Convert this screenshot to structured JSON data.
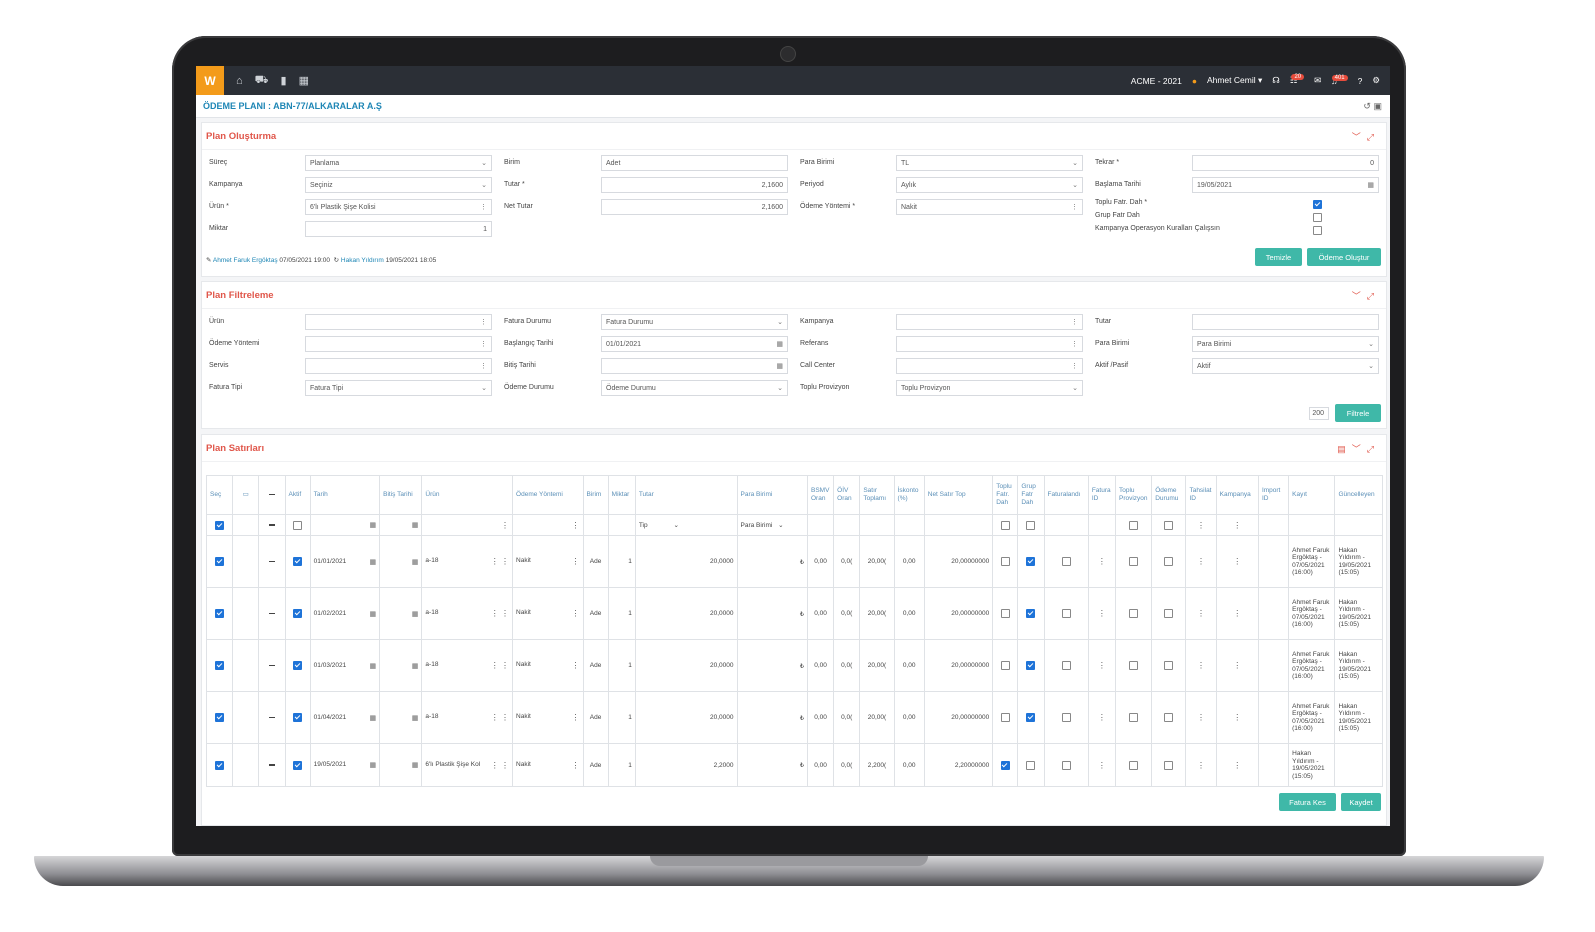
{
  "app": {
    "logo": "W",
    "company": "ACME - 2021",
    "user": "Ahmet Cemil",
    "badge_tasks": "20",
    "badge_notifications": "401"
  },
  "page_title": "ÖDEME PLANI : ABN-77/ALKARALAR A.Ş",
  "plan_creation": {
    "title": "Plan Oluşturma",
    "surec_label": "Süreç",
    "surec_value": "Planlama",
    "kampanya_label": "Kampanya",
    "kampanya_value": "Seçiniz",
    "urun_label": "Ürün *",
    "urun_value": "6'lı Plastik Şişe Kolisi",
    "miktar_label": "Miktar",
    "miktar_value": "1",
    "birim_label": "Birim",
    "birim_value": "Adet",
    "tutar_label": "Tutar *",
    "tutar_value": "2,1600",
    "net_tutar_label": "Net Tutar",
    "net_tutar_value": "2,1600",
    "para_birimi_label": "Para Birimi",
    "para_birimi_value": "TL",
    "periyod_label": "Periyod",
    "periyod_value": "Aylık",
    "odeme_yontemi_label": "Ödeme Yöntemi *",
    "odeme_yontemi_value": "Nakit",
    "tekrar_label": "Tekrar *",
    "tekrar_value": "0",
    "baslama_tarihi_label": "Başlama Tarihi",
    "baslama_tarihi_value": "19/05/2021",
    "toplu_fatr_label": "Toplu Fatr. Dah *",
    "grup_fatr_label": "Grup Fatr Dah",
    "kampanya_op_label": "Kampanya Operasyon Kuralları Çalışsın",
    "created_by": "Ahmet Faruk Ergöktaş",
    "created_at": "07/05/2021 19:00",
    "updated_by": "Hakan Yıldırım",
    "updated_at": "19/05/2021 18:05",
    "clear_button": "Temizle",
    "create_button": "Ödeme Oluştur"
  },
  "plan_filter": {
    "title": "Plan Filtreleme",
    "urun_label": "Ürün",
    "odeme_yontemi_label": "Ödeme Yöntemi",
    "servis_label": "Servis",
    "fatura_tipi_label": "Fatura Tipi",
    "fatura_tipi_value": "Fatura Tipi",
    "fatura_durumu_label": "Fatura Durumu",
    "fatura_durumu_value": "Fatura Durumu",
    "baslangic_label": "Başlangıç Tarihi",
    "baslangic_value": "01/01/2021",
    "bitis_label": "Bitiş Tarihi",
    "odeme_durumu_label": "Ödeme Durumu",
    "odeme_durumu_value": "Ödeme Durumu",
    "kampanya_label": "Kampanya",
    "referans_label": "Referans",
    "call_center_label": "Call Center",
    "toplu_provizyon_label": "Toplu Provizyon",
    "toplu_provizyon_value": "Toplu Provizyon",
    "tutar_label": "Tutar",
    "para_birimi_label": "Para Birimi",
    "para_birimi_value": "Para Birimi",
    "aktif_label": "Aktif /Pasif",
    "aktif_value": "Aktif",
    "page_size": "200",
    "filter_button": "Filtrele"
  },
  "plan_rows": {
    "title": "Plan Satırları",
    "headers": [
      "Seç",
      "",
      "",
      "Aktif",
      "Tarih",
      "Bitiş Tarihi",
      "Ürün",
      "Ödeme Yöntemi",
      "Birim",
      "Miktar",
      "Tutar",
      "Para Birimi",
      "BSMV Oran",
      "ÖİV Oran",
      "Satır Toplamı",
      "İskonto (%)",
      "Net Satır Top",
      "Toplu Fatr. Dah",
      "Grup Fatr Dah",
      "Faturalandı",
      "Fatura ID",
      "Toplu Provizyon",
      "Ödeme Durumu",
      "Tahsilat ID",
      "Kampanya",
      "Import ID",
      "Kayıt",
      "Güncelleyen"
    ],
    "filter_tip": "Tip",
    "filter_para_birimi": "Para Birimi",
    "rows": [
      {
        "tarih": "01/01/2021",
        "urun": "a-18",
        "odeme": "Nakit",
        "birim": "Ade",
        "miktar": "1",
        "tutar": "20,0000",
        "bsmv": "0,00",
        "oiv": "0,0(",
        "satir": "20,00(",
        "iskonto": "0,00",
        "net": "20,00000000",
        "kayit": "Ahmet Faruk Ergöktaş - 07/05/2021 (16:00)",
        "guncelleyen": "Hakan Yıldırım - 19/05/2021 (15:05)",
        "toplu": false,
        "grup": true
      },
      {
        "tarih": "01/02/2021",
        "urun": "a-18",
        "odeme": "Nakit",
        "birim": "Ade",
        "miktar": "1",
        "tutar": "20,0000",
        "bsmv": "0,00",
        "oiv": "0,0(",
        "satir": "20,00(",
        "iskonto": "0,00",
        "net": "20,00000000",
        "kayit": "Ahmet Faruk Ergöktaş - 07/05/2021 (16:00)",
        "guncelleyen": "Hakan Yıldırım - 19/05/2021 (15:05)",
        "toplu": false,
        "grup": true
      },
      {
        "tarih": "01/03/2021",
        "urun": "a-18",
        "odeme": "Nakit",
        "birim": "Ade",
        "miktar": "1",
        "tutar": "20,0000",
        "bsmv": "0,00",
        "oiv": "0,0(",
        "satir": "20,00(",
        "iskonto": "0,00",
        "net": "20,00000000",
        "kayit": "Ahmet Faruk Ergöktaş - 07/05/2021 (16:00)",
        "guncelleyen": "Hakan Yıldırım - 19/05/2021 (15:05)",
        "toplu": false,
        "grup": true
      },
      {
        "tarih": "01/04/2021",
        "urun": "a-18",
        "odeme": "Nakit",
        "birim": "Ade",
        "miktar": "1",
        "tutar": "20,0000",
        "bsmv": "0,00",
        "oiv": "0,0(",
        "satir": "20,00(",
        "iskonto": "0,00",
        "net": "20,00000000",
        "kayit": "Ahmet Faruk Ergöktaş - 07/05/2021 (16:00)",
        "guncelleyen": "Hakan Yıldırım - 19/05/2021 (15:05)",
        "toplu": false,
        "grup": true
      },
      {
        "tarih": "19/05/2021",
        "urun": "6'lı Plastik Şişe Kol",
        "odeme": "Nakit",
        "birim": "Ade",
        "miktar": "1",
        "tutar": "2,2000",
        "bsmv": "0,00",
        "oiv": "0,0(",
        "satir": "2,200(",
        "iskonto": "0,00",
        "net": "2,20000000",
        "kayit": "Hakan Yıldırım - 19/05/2021 (15:05)",
        "guncelleyen": "",
        "toplu": true,
        "grup": false
      }
    ],
    "invoice_button": "Fatura Kes",
    "save_button": "Kaydet"
  },
  "colors": {
    "accent": "#3fb8a8",
    "panel_title": "#e0564a",
    "link": "#1e86b5",
    "topbar": "#2b2f36",
    "logo": "#f39b1a"
  }
}
